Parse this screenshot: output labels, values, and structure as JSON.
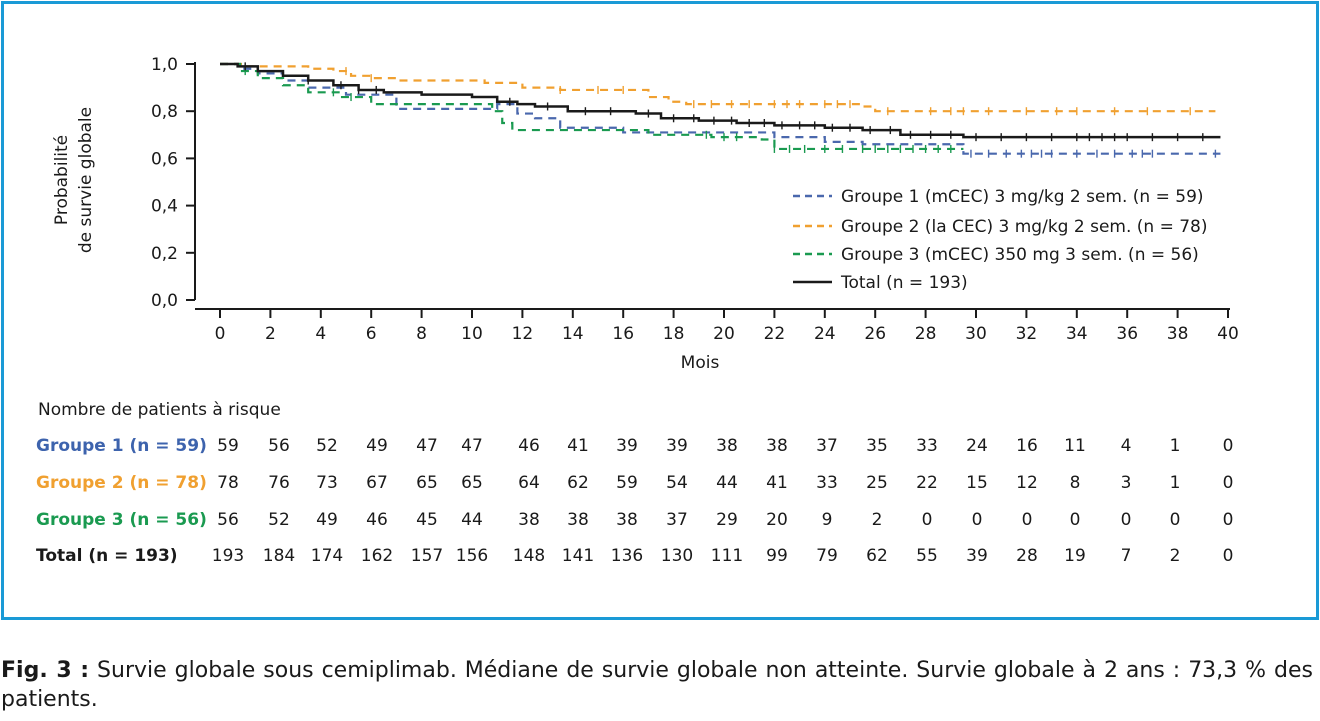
{
  "chart_data": {
    "type": "line",
    "xlabel": "Mois",
    "ylabel_line1": "Probabilité",
    "ylabel_line2": "de survie globale",
    "xlim": [
      0,
      40
    ],
    "ylim": [
      0,
      1
    ],
    "x_ticks": [
      0,
      2,
      4,
      6,
      8,
      10,
      12,
      14,
      16,
      18,
      20,
      22,
      24,
      26,
      28,
      30,
      32,
      34,
      36,
      38,
      40
    ],
    "x_tick_labels": [
      "0",
      "2",
      "4",
      "6",
      "8",
      "10",
      "12",
      "14",
      "16",
      "18",
      "20",
      "22",
      "24",
      "26",
      "28",
      "30",
      "32",
      "34",
      "36",
      "38",
      "40"
    ],
    "y_ticks": [
      0,
      0.2,
      0.4,
      0.6,
      0.8,
      1.0
    ],
    "y_tick_labels": [
      "0,0",
      "0,2",
      "0,4",
      "0,6",
      "0,8",
      "1,0"
    ],
    "legend_position": "right",
    "series": [
      {
        "name": "Groupe 1 (mCEC) 3 mg/kg 2 sem. (n = 59)",
        "color": "#4a68ad",
        "style": "dashed",
        "x": [
          0,
          0.8,
          1.5,
          2.5,
          3.5,
          5,
          7,
          9,
          10.5,
          11,
          11.8,
          12.5,
          13.5,
          16,
          19,
          22,
          24,
          25.5,
          29.5,
          39.7
        ],
        "y": [
          1.0,
          0.98,
          0.96,
          0.93,
          0.9,
          0.87,
          0.81,
          0.81,
          0.81,
          0.83,
          0.79,
          0.77,
          0.73,
          0.71,
          0.71,
          0.69,
          0.67,
          0.66,
          0.62,
          0.62
        ],
        "censor_x": [
          29.8,
          30.5,
          31.2,
          31.8,
          32.2,
          32.6,
          33,
          34,
          34.8,
          35.5,
          36.2,
          36.6,
          37,
          39.5
        ]
      },
      {
        "name": "Groupe 2 (la CEC) 3 mg/kg 2 sem. (n = 78)",
        "color": "#f0a030",
        "style": "dashed",
        "x": [
          0,
          1,
          2,
          3.5,
          4.5,
          5.2,
          6,
          7,
          9,
          10.5,
          12,
          13.5,
          17,
          17.8,
          18.5,
          25.5,
          26,
          39.5
        ],
        "y": [
          1.0,
          0.99,
          0.99,
          0.98,
          0.97,
          0.95,
          0.94,
          0.93,
          0.93,
          0.92,
          0.9,
          0.89,
          0.86,
          0.84,
          0.83,
          0.82,
          0.8,
          0.8
        ],
        "censor_x": [
          5,
          6,
          13.5,
          15,
          16,
          18.8,
          19.5,
          20.3,
          21,
          22,
          22.5,
          23,
          24,
          24.5,
          25,
          26.5,
          28.2,
          29,
          29.5,
          30.5,
          32,
          33.2,
          34,
          35.5,
          36.8,
          38.5
        ]
      },
      {
        "name": "Groupe 3 (mCEC) 350 mg 3 sem. (n = 56)",
        "color": "#1a9a50",
        "style": "dashed",
        "x": [
          0,
          0.8,
          1.5,
          2.5,
          3.5,
          4.8,
          6,
          9,
          10.8,
          11.2,
          11.6,
          13,
          17,
          19.5,
          21.5,
          22,
          29.5
        ],
        "y": [
          1.0,
          0.97,
          0.94,
          0.91,
          0.88,
          0.86,
          0.83,
          0.83,
          0.8,
          0.75,
          0.72,
          0.72,
          0.7,
          0.69,
          0.68,
          0.64,
          0.64
        ],
        "censor_x": [
          1,
          4.5,
          5.2,
          19.3,
          20,
          20.5,
          22,
          22.6,
          23.2,
          24,
          24.7,
          25.5,
          26,
          26.5,
          27,
          27.5,
          28,
          28.5,
          29
        ]
      },
      {
        "name": "Total (n = 193)",
        "color": "#1a1a1a",
        "style": "solid",
        "x": [
          0,
          0.7,
          1.5,
          2.5,
          3.5,
          4.5,
          5.5,
          6.5,
          8,
          10,
          11,
          11.8,
          12.5,
          13.8,
          16.5,
          17.5,
          19,
          20.5,
          22,
          24,
          25.5,
          27,
          29.5,
          39.7
        ],
        "y": [
          1.0,
          0.99,
          0.97,
          0.95,
          0.93,
          0.91,
          0.89,
          0.88,
          0.87,
          0.86,
          0.84,
          0.83,
          0.82,
          0.8,
          0.79,
          0.77,
          0.76,
          0.75,
          0.74,
          0.73,
          0.72,
          0.7,
          0.69,
          0.69
        ],
        "censor_x": [
          1,
          3.5,
          4.8,
          5.5,
          6.2,
          11.5,
          13,
          14.5,
          15.5,
          17,
          18,
          18.8,
          19.6,
          20.3,
          21,
          21.6,
          22.3,
          23,
          23.6,
          24.3,
          25,
          25.8,
          26.6,
          27.4,
          28.2,
          29,
          30,
          31,
          32,
          33,
          34,
          34.5,
          35,
          35.5,
          36,
          37,
          38,
          39
        ]
      }
    ]
  },
  "risk_table": {
    "title": "Nombre de patients à risque",
    "rows": [
      {
        "label": "Groupe 1 (n = 59)",
        "color": "#3d63ad",
        "values": [
          "59",
          "56",
          "52",
          "49",
          "47",
          "47",
          "46",
          "41",
          "39",
          "39",
          "38",
          "38",
          "37",
          "35",
          "33",
          "24",
          "16",
          "11",
          "4",
          "1",
          "0"
        ]
      },
      {
        "label": "Groupe 2 (n = 78)",
        "color": "#f0a030",
        "values": [
          "78",
          "76",
          "73",
          "67",
          "65",
          "65",
          "64",
          "62",
          "59",
          "54",
          "44",
          "41",
          "33",
          "25",
          "22",
          "15",
          "12",
          "8",
          "3",
          "1",
          "0"
        ]
      },
      {
        "label": "Groupe 3 (n = 56)",
        "color": "#1a9a50",
        "values": [
          "56",
          "52",
          "49",
          "46",
          "45",
          "44",
          "38",
          "38",
          "38",
          "37",
          "29",
          "20",
          "9",
          "2",
          "0",
          "0",
          "0",
          "0",
          "0",
          "0",
          "0"
        ]
      },
      {
        "label": "Total (n = 193)",
        "color": "#1a1a1a",
        "values": [
          "193",
          "184",
          "174",
          "162",
          "157",
          "156",
          "148",
          "141",
          "136",
          "130",
          "111",
          "99",
          "79",
          "62",
          "55",
          "39",
          "28",
          "19",
          "7",
          "2",
          "0"
        ]
      }
    ]
  },
  "caption": {
    "fig": "Fig. 3 :",
    "text": " Survie globale sous cemiplimab. Médiane de survie globale non atteinte. Survie globale à 2 ans : 73,3 % des patients."
  },
  "colors": {
    "frame": "#1a9ad6"
  }
}
